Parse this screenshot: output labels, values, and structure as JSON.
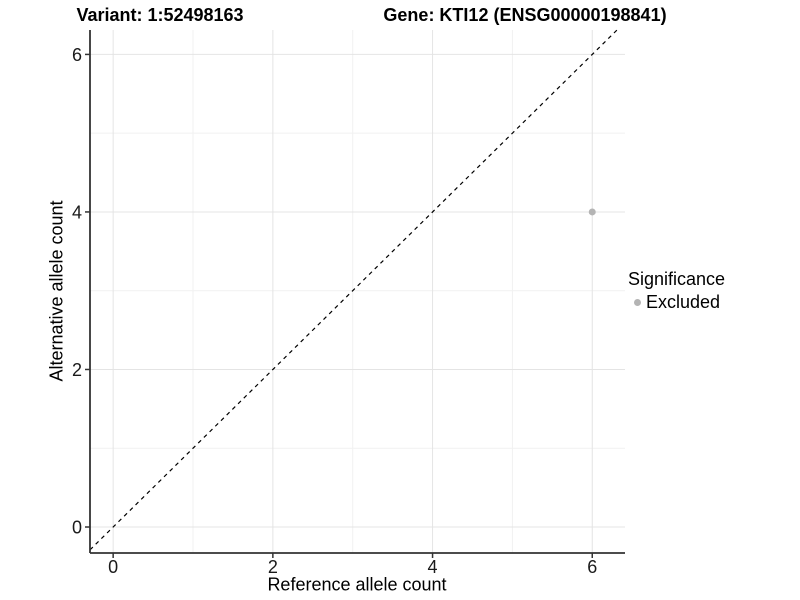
{
  "chart_data": {
    "type": "scatter",
    "titles": {
      "left": "Variant: 1:52498163",
      "right": "Gene: KTI12 (ENSG00000198841)"
    },
    "xlabel": "Reference allele count",
    "ylabel": "Alternative allele count",
    "xlim": [
      -0.29,
      6.41
    ],
    "ylim": [
      -0.33,
      6.31
    ],
    "x_ticks": [
      0,
      2,
      4,
      6
    ],
    "y_ticks": [
      0,
      2,
      4,
      6
    ],
    "x_minor_ticks": [
      1,
      3,
      5
    ],
    "y_minor_ticks": [
      1,
      3,
      5
    ],
    "grid": "major+minor on white background",
    "reference_line": {
      "slope": 1,
      "intercept": 0,
      "style": "dashed",
      "color": "#000000"
    },
    "series": [
      {
        "name": "Excluded",
        "color": "#b4b4b4",
        "points": [
          [
            6,
            4
          ]
        ]
      }
    ],
    "legend": {
      "title": "Significance",
      "position": "right",
      "entries": [
        {
          "label": "Excluded",
          "color": "#b4b4b4"
        }
      ]
    }
  },
  "colors": {
    "background": "#ffffff",
    "grid_major": "#e4e4e4",
    "grid_minor": "#f1f1f1",
    "axis_line": "#333333",
    "tick_mark": "#333333",
    "tick_text": "#1a1a1a"
  }
}
